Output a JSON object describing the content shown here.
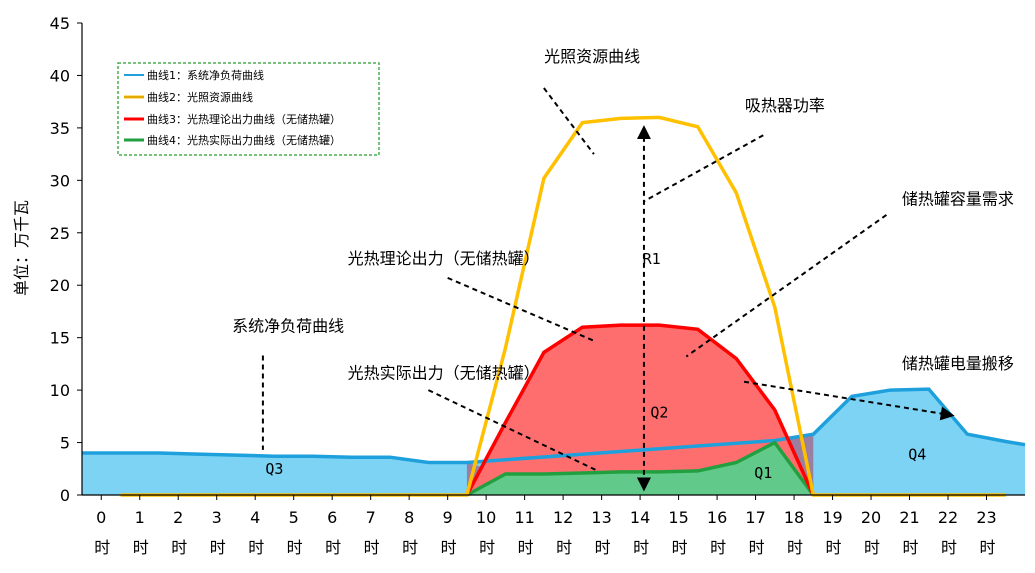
{
  "chart_data": {
    "type": "area",
    "ylabel": "单位：万千瓦",
    "ylim": [
      0,
      45
    ],
    "yticks": [
      0,
      5,
      10,
      15,
      20,
      25,
      30,
      35,
      40,
      45
    ],
    "xlim": [
      -0.5,
      24
    ],
    "xticks": [
      {
        "x": 0,
        "num": "0",
        "unit": "时"
      },
      {
        "x": 1,
        "num": "1",
        "unit": "时"
      },
      {
        "x": 2,
        "num": "2",
        "unit": "时"
      },
      {
        "x": 3,
        "num": "3",
        "unit": "时"
      },
      {
        "x": 4,
        "num": "4",
        "unit": "时"
      },
      {
        "x": 5,
        "num": "5",
        "unit": "时"
      },
      {
        "x": 6,
        "num": "6",
        "unit": "时"
      },
      {
        "x": 7,
        "num": "7",
        "unit": "时"
      },
      {
        "x": 8,
        "num": "8",
        "unit": "时"
      },
      {
        "x": 9,
        "num": "9",
        "unit": "时"
      },
      {
        "x": 10,
        "num": "10",
        "unit": "时"
      },
      {
        "x": 11,
        "num": "11",
        "unit": "时"
      },
      {
        "x": 12,
        "num": "12",
        "unit": "时"
      },
      {
        "x": 13,
        "num": "13",
        "unit": "时"
      },
      {
        "x": 14,
        "num": "14",
        "unit": "时"
      },
      {
        "x": 15,
        "num": "15",
        "unit": "时"
      },
      {
        "x": 16,
        "num": "16",
        "unit": "时"
      },
      {
        "x": 17,
        "num": "17",
        "unit": "时"
      },
      {
        "x": 18,
        "num": "18",
        "unit": "时"
      },
      {
        "x": 19,
        "num": "19",
        "unit": "时"
      },
      {
        "x": 20,
        "num": "20",
        "unit": "时"
      },
      {
        "x": 21,
        "num": "21",
        "unit": "时"
      },
      {
        "x": 22,
        "num": "22",
        "unit": "时"
      },
      {
        "x": 23,
        "num": "23",
        "unit": "时"
      }
    ],
    "grid": false,
    "legend_position": "top-left",
    "series": [
      {
        "name": "曲线1：系统净负荷曲线",
        "color": "#1ea0dc",
        "points": [
          [
            -0.5,
            4.0
          ],
          [
            0.5,
            4.0
          ],
          [
            1.5,
            4.0
          ],
          [
            2.5,
            3.9
          ],
          [
            3.5,
            3.8
          ],
          [
            4.5,
            3.7
          ],
          [
            5.5,
            3.7
          ],
          [
            6.5,
            3.6
          ],
          [
            7.5,
            3.6
          ],
          [
            8.5,
            3.1
          ],
          [
            9.5,
            3.1
          ],
          [
            17.5,
            5.2
          ],
          [
            18.5,
            5.8
          ],
          [
            19.5,
            9.4
          ],
          [
            20.5,
            10.0
          ],
          [
            21.5,
            10.1
          ],
          [
            22.5,
            5.8
          ],
          [
            23.5,
            5.1
          ],
          [
            24,
            4.8
          ]
        ]
      },
      {
        "name": "曲线2：光照资源曲线",
        "color": "#ffc000",
        "points": [
          [
            0.5,
            0
          ],
          [
            9.5,
            0
          ],
          [
            10.5,
            14.0
          ],
          [
            11.5,
            30.2
          ],
          [
            12.5,
            35.5
          ],
          [
            13.5,
            35.9
          ],
          [
            14.5,
            36.0
          ],
          [
            15.5,
            35.1
          ],
          [
            16.5,
            28.8
          ],
          [
            17.5,
            17.9
          ],
          [
            18.5,
            0
          ],
          [
            23.5,
            0
          ]
        ]
      },
      {
        "name": "曲线3：光热理论出力曲线（无储热罐）",
        "color": "#ff0000",
        "points": [
          [
            9.5,
            0
          ],
          [
            10.5,
            6.9
          ],
          [
            11.5,
            13.6
          ],
          [
            12.5,
            16.0
          ],
          [
            13.5,
            16.2
          ],
          [
            14.5,
            16.2
          ],
          [
            15.5,
            15.8
          ],
          [
            16.5,
            13.0
          ],
          [
            17.5,
            8.1
          ],
          [
            18.5,
            0
          ]
        ]
      },
      {
        "name": "曲线4：光热实际出力曲线（无储热罐）",
        "color": "#22a040",
        "points": [
          [
            9.5,
            0
          ],
          [
            10.5,
            2.0
          ],
          [
            11.5,
            2.0
          ],
          [
            12.5,
            2.1
          ],
          [
            13.5,
            2.2
          ],
          [
            14.5,
            2.2
          ],
          [
            15.5,
            2.3
          ],
          [
            16.5,
            3.1
          ],
          [
            17.5,
            5.0
          ],
          [
            18.5,
            0
          ]
        ]
      }
    ],
    "fill_colors": {
      "q3q4": "#7dd3f4",
      "q2": "#ff6e6e",
      "q1": "#61c98a",
      "overlap": "#9a7fa0"
    },
    "regions": [
      {
        "label": "Q3",
        "x": 4.5,
        "y": 2.0
      },
      {
        "label": "Q2",
        "x": 14.5,
        "y": 7.4
      },
      {
        "label": "Q1",
        "x": 17.2,
        "y": 1.6
      },
      {
        "label": "Q4",
        "x": 21.2,
        "y": 3.4
      },
      {
        "label": "R1",
        "x": 14.3,
        "y": 22.0
      }
    ],
    "annotations": [
      {
        "text": "光照资源曲线",
        "tx": 14.0,
        "ty": 41.3,
        "anchor": "end",
        "line": [
          [
            11.5,
            38.8
          ],
          [
            12.8,
            32.5
          ]
        ]
      },
      {
        "text": "吸热器功率",
        "tx": 18.8,
        "ty": 36.6,
        "anchor": "end",
        "line": [
          [
            17.2,
            34.3
          ],
          [
            14.1,
            28.0
          ]
        ]
      },
      {
        "text": "储热罐容量需求",
        "tx": 20.8,
        "ty": 27.7,
        "anchor": "start",
        "line": [
          [
            20.4,
            26.7
          ],
          [
            15.2,
            13.2
          ]
        ]
      },
      {
        "text": "光热理论出力（无储热罐）",
        "tx": 6.4,
        "ty": 22.0,
        "anchor": "start",
        "line": [
          [
            9.0,
            20.7
          ],
          [
            12.8,
            14.7
          ]
        ]
      },
      {
        "text": "系统净负荷曲线",
        "tx": 3.4,
        "ty": 15.6,
        "anchor": "start",
        "line": [
          [
            4.2,
            13.3
          ],
          [
            4.2,
            4.3
          ]
        ]
      },
      {
        "text": "光热实际出力（无储热罐）",
        "tx": 6.4,
        "ty": 11.1,
        "anchor": "start",
        "line": [
          [
            8.5,
            10.0
          ],
          [
            12.9,
            2.3
          ]
        ]
      },
      {
        "text": "储热罐电量搬移",
        "tx": 20.8,
        "ty": 12.0,
        "anchor": "start",
        "line": null
      }
    ],
    "arrows": [
      {
        "kind": "double",
        "from": [
          14.1,
          35.0
        ],
        "to": [
          14.1,
          0.6
        ]
      },
      {
        "kind": "single",
        "from": [
          16.7,
          10.8
        ],
        "to": [
          22.1,
          7.6
        ]
      }
    ]
  }
}
